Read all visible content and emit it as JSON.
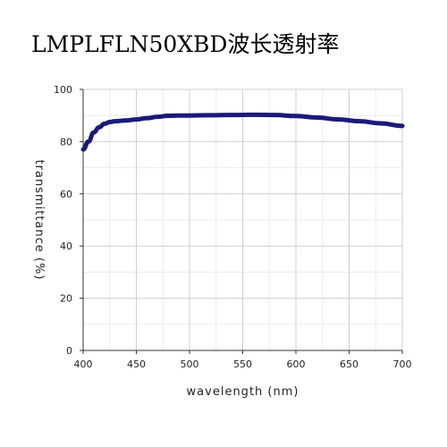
{
  "chart_data": {
    "type": "line",
    "title": "LMPLFLN50XBD波长透射率",
    "xlabel": "wavelength (nm)",
    "ylabel": "transmittance (%)",
    "xlim": [
      400,
      700
    ],
    "ylim": [
      0,
      100
    ],
    "x_ticks": [
      400,
      450,
      500,
      550,
      600,
      650,
      700
    ],
    "y_ticks": [
      0,
      20,
      40,
      60,
      80,
      100
    ],
    "grid": true,
    "line_color": "#1a1a7a",
    "series": [
      {
        "x": [
          400,
          405,
          410,
          415,
          420,
          425,
          430,
          440,
          450,
          460,
          470,
          480,
          490,
          500,
          520,
          540,
          560,
          580,
          600,
          620,
          640,
          660,
          680,
          700
        ],
        "values": [
          77,
          80,
          83.5,
          85.5,
          86.8,
          87.5,
          87.8,
          88.1,
          88.5,
          89,
          89.5,
          89.9,
          90,
          90,
          90.1,
          90.2,
          90.3,
          90.2,
          89.8,
          89.2,
          88.5,
          87.8,
          87,
          86
        ]
      }
    ]
  }
}
